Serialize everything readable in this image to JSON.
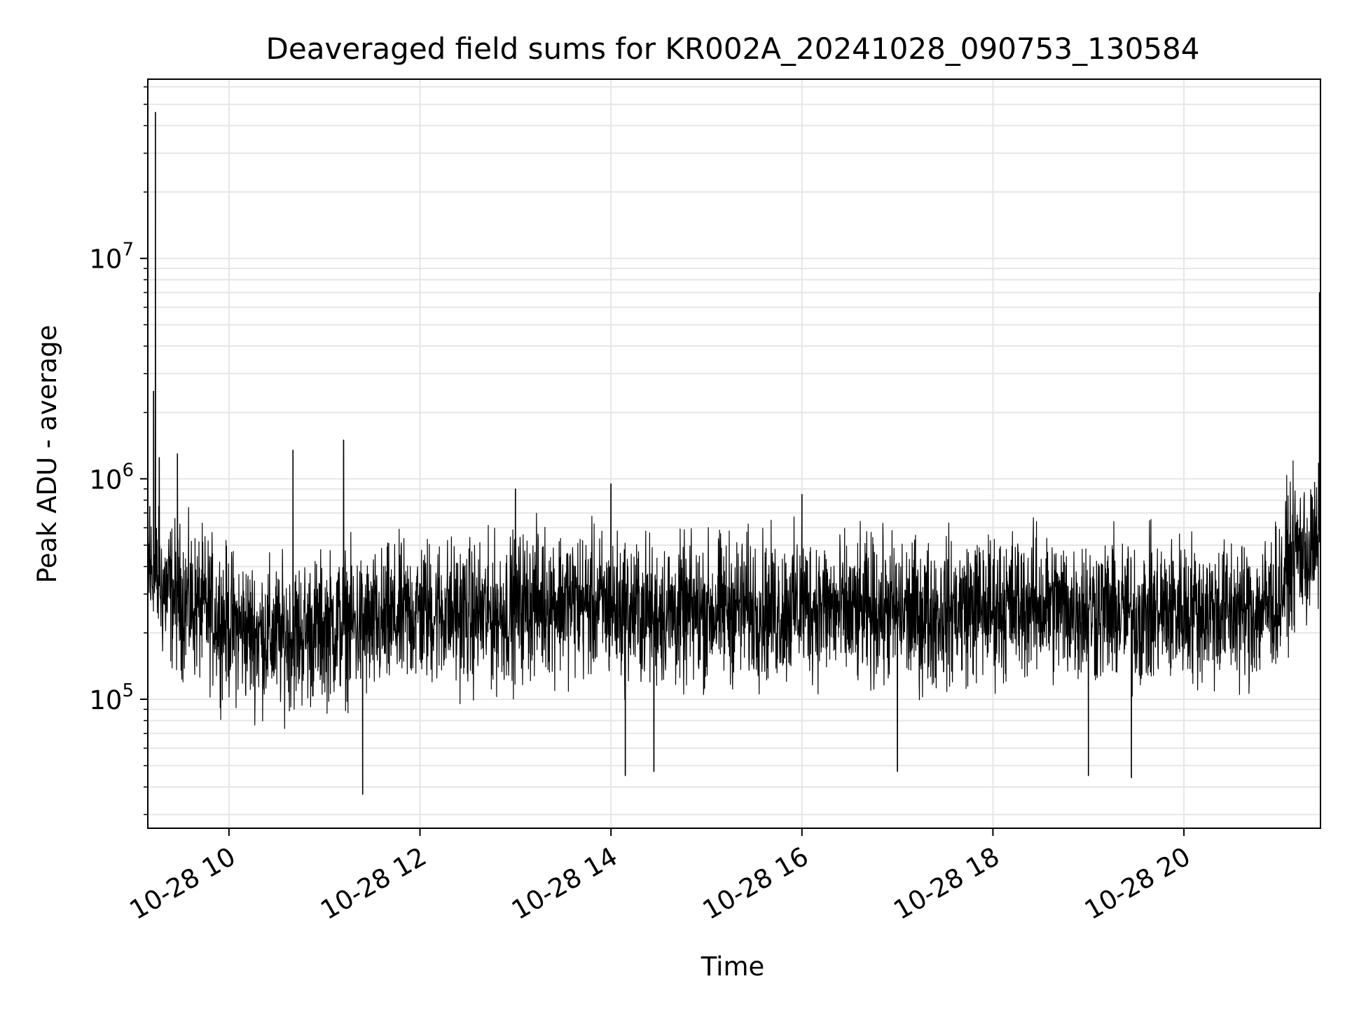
{
  "chart_data": {
    "type": "line",
    "title": "Deaveraged field sums for KR002A_20241028_090753_130584",
    "xlabel": "Time",
    "ylabel": "Peak ADU - average",
    "x_tick_labels": [
      "10-28 10",
      "10-28 12",
      "10-28 14",
      "10-28 16",
      "10-28 18",
      "10-28 20"
    ],
    "x_tick_hours": [
      10,
      12,
      14,
      16,
      18,
      20
    ],
    "xlim_hours": [
      9.15,
      21.43
    ],
    "x_start_label": "10-28 09:09",
    "x_end_label": "10-28 21:26",
    "y_scale": "log",
    "ylim": [
      26000,
      65000000
    ],
    "y_tick_labels": [
      {
        "base": "10",
        "exp": "5",
        "value": 100000
      },
      {
        "base": "10",
        "exp": "6",
        "value": 1000000
      },
      {
        "base": "10",
        "exp": "7",
        "value": 10000000
      }
    ],
    "grid": true,
    "line_color": "#000000",
    "grid_color": "#e6e6e6",
    "series": [
      {
        "x_hours": [
          9.15,
          9.25,
          9.4,
          9.6,
          9.8,
          10.0,
          10.25,
          10.5,
          10.75,
          11.0,
          11.25,
          11.5,
          11.75,
          12.0,
          12.25,
          12.5,
          12.75,
          13.0,
          13.25,
          13.5,
          13.75,
          14.0,
          14.25,
          14.5,
          14.75,
          15.0,
          15.25,
          15.5,
          15.75,
          16.0,
          16.25,
          16.5,
          16.75,
          17.0,
          17.25,
          17.5,
          17.75,
          18.0,
          18.25,
          18.5,
          18.75,
          19.0,
          19.25,
          19.5,
          19.75,
          20.0,
          20.25,
          20.5,
          20.75,
          21.0,
          21.1,
          21.2,
          21.3,
          21.43
        ],
        "median": [
          380000,
          330000,
          300000,
          270000,
          250000,
          220000,
          200000,
          190000,
          200000,
          210000,
          220000,
          210000,
          230000,
          250000,
          250000,
          240000,
          240000,
          260000,
          280000,
          280000,
          270000,
          260000,
          250000,
          250000,
          240000,
          250000,
          260000,
          260000,
          250000,
          270000,
          260000,
          240000,
          250000,
          250000,
          240000,
          250000,
          260000,
          260000,
          270000,
          270000,
          260000,
          260000,
          250000,
          240000,
          250000,
          260000,
          250000,
          250000,
          250000,
          290000,
          420000,
          480000,
          450000,
          520000
        ]
      }
    ],
    "spikes": [
      {
        "t": 9.17,
        "v": 750000
      },
      {
        "t": 9.21,
        "v": 2500000
      },
      {
        "t": 9.23,
        "v": 46000000
      },
      {
        "t": 9.27,
        "v": 1250000
      },
      {
        "t": 9.46,
        "v": 1300000
      },
      {
        "t": 10.67,
        "v": 1350000
      },
      {
        "t": 11.2,
        "v": 1500000
      },
      {
        "t": 11.4,
        "v": 37000
      },
      {
        "t": 13.0,
        "v": 900000
      },
      {
        "t": 14.0,
        "v": 950000
      },
      {
        "t": 14.15,
        "v": 45000
      },
      {
        "t": 14.45,
        "v": 47000
      },
      {
        "t": 16.0,
        "v": 850000
      },
      {
        "t": 17.0,
        "v": 47000
      },
      {
        "t": 19.0,
        "v": 45000
      },
      {
        "t": 19.45,
        "v": 44000
      },
      {
        "t": 21.42,
        "v": 7000000
      }
    ]
  }
}
